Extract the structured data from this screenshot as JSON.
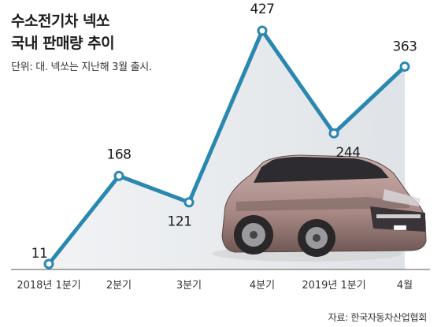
{
  "header": {
    "title_line1": "수소전기차 넥쏘",
    "title_line2": "국내 판매량 추이",
    "subtitle": "단위: 대. 넥쏘는 지난해 3월 출시."
  },
  "footer": {
    "source": "자료: 한국자동차산업협회"
  },
  "colors": {
    "line": "#2a87b0",
    "area": "#e3e7eb",
    "marker_fill": "#ffffff",
    "car_body": "#b0928e"
  },
  "chart_data": {
    "type": "line",
    "title": "수소전기차 넥쏘 국내 판매량 추이",
    "unit": "단위: 대",
    "categories": [
      "2018년 1분기",
      "2분기",
      "3분기",
      "4분기",
      "2019년 1분기",
      "4월"
    ],
    "values": [
      11,
      168,
      121,
      427,
      244,
      363
    ],
    "ylim": [
      0,
      430
    ],
    "grid": false,
    "legend": "none"
  }
}
